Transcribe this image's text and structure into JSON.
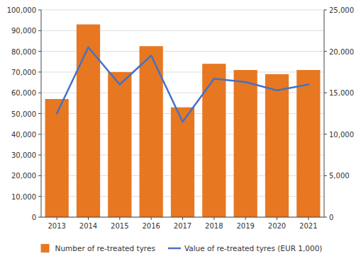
{
  "chart_data": {
    "type": "bar",
    "categories": [
      "2013",
      "2014",
      "2015",
      "2016",
      "2017",
      "2018",
      "2019",
      "2020",
      "2021"
    ],
    "series": [
      {
        "name": "Number of re-treated tyres",
        "type": "bar",
        "color": "#E87722",
        "values": [
          57000,
          93000,
          70000,
          82500,
          53000,
          74000,
          71000,
          69000,
          71000
        ]
      },
      {
        "name": "Value of re-treated tyres (EUR 1,000)",
        "type": "line",
        "color": "#4472C4",
        "axis": "y2",
        "values": [
          12500,
          20500,
          16000,
          19500,
          11500,
          16700,
          16300,
          15300,
          16000
        ]
      }
    ],
    "ylim": [
      0,
      100000
    ],
    "yticks": [
      0,
      {
        "value": 10000,
        "label": "10,000"
      },
      {
        "value": 20000,
        "label": "20,000"
      },
      {
        "value": 30000,
        "label": "30,000"
      },
      {
        "value": 40000,
        "label": "40,000"
      },
      {
        "value": 50000,
        "label": "50,000"
      },
      {
        "value": 60000,
        "label": "60,000"
      },
      {
        "value": 70000,
        "label": "70,000"
      },
      {
        "value": 80000,
        "label": "80,000"
      },
      {
        "value": 90000,
        "label": "90,000"
      },
      {
        "value": 100000,
        "label": "100,000"
      }
    ],
    "y2lim": [
      0,
      25000
    ],
    "y2ticks": [
      0,
      {
        "value": 5000,
        "label": "5,000"
      },
      {
        "value": 10000,
        "label": "10,000"
      },
      {
        "value": 15000,
        "label": "15,000"
      },
      {
        "value": 20000,
        "label": "20,000"
      },
      {
        "value": 25000,
        "label": "25,000"
      }
    ],
    "grid": true,
    "legend": "bottom"
  }
}
